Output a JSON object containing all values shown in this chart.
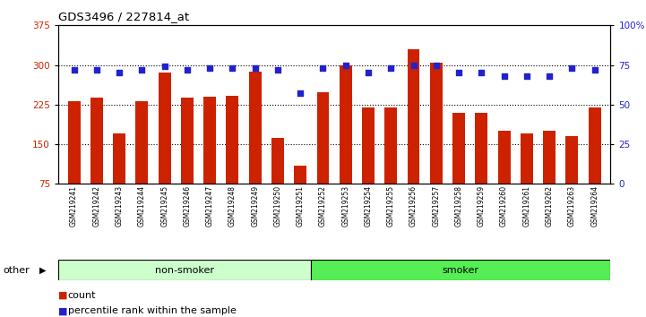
{
  "title": "GDS3496 / 227814_at",
  "categories": [
    "GSM219241",
    "GSM219242",
    "GSM219243",
    "GSM219244",
    "GSM219245",
    "GSM219246",
    "GSM219247",
    "GSM219248",
    "GSM219249",
    "GSM219250",
    "GSM219251",
    "GSM219252",
    "GSM219253",
    "GSM219254",
    "GSM219255",
    "GSM219256",
    "GSM219257",
    "GSM219258",
    "GSM219259",
    "GSM219260",
    "GSM219261",
    "GSM219262",
    "GSM219263",
    "GSM219264"
  ],
  "bar_values": [
    232,
    238,
    170,
    232,
    285,
    238,
    240,
    242,
    288,
    162,
    110,
    248,
    300,
    220,
    220,
    330,
    305,
    210,
    210,
    175,
    170,
    175,
    165,
    220
  ],
  "dot_values": [
    72,
    72,
    70,
    72,
    74,
    72,
    73,
    73,
    73,
    72,
    57,
    73,
    75,
    70,
    73,
    75,
    75,
    70,
    70,
    68,
    68,
    68,
    73,
    72
  ],
  "ylim_left": [
    75,
    375
  ],
  "ylim_right": [
    0,
    100
  ],
  "yticks_left": [
    75,
    150,
    225,
    300,
    375
  ],
  "yticks_right": [
    0,
    25,
    50,
    75,
    100
  ],
  "bar_color": "#cc2200",
  "dot_color": "#2222cc",
  "bg_color": "#ffffff",
  "plot_bg": "#ffffff",
  "group1_label": "non-smoker",
  "group1_count": 11,
  "group2_label": "smoker",
  "group2_count": 13,
  "group1_color": "#ccffcc",
  "group2_color": "#55ee55",
  "other_label": "other",
  "legend_count_label": "count",
  "legend_pct_label": "percentile rank within the sample",
  "tick_label_color_left": "#cc2200",
  "tick_label_color_right": "#2222cc",
  "gridline_y": [
    150,
    225,
    300
  ],
  "bar_bottom": 75
}
